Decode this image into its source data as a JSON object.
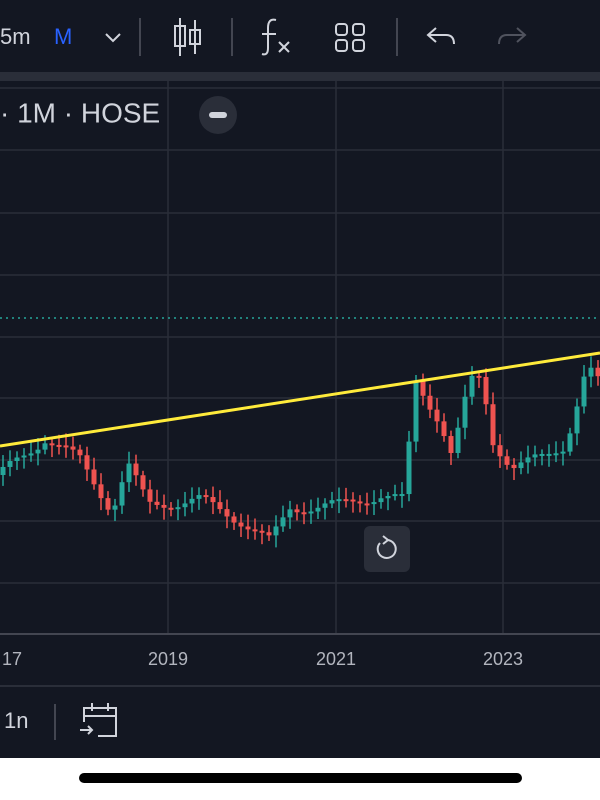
{
  "toolbar": {
    "interval": "5m",
    "chart_interval": "M"
  },
  "legend": {
    "title": "· 1M · HOSE"
  },
  "x_axis": {
    "labels": [
      "17",
      "2019",
      "2021",
      "2023"
    ]
  },
  "bottom_bar": {
    "range": "1n"
  }
}
